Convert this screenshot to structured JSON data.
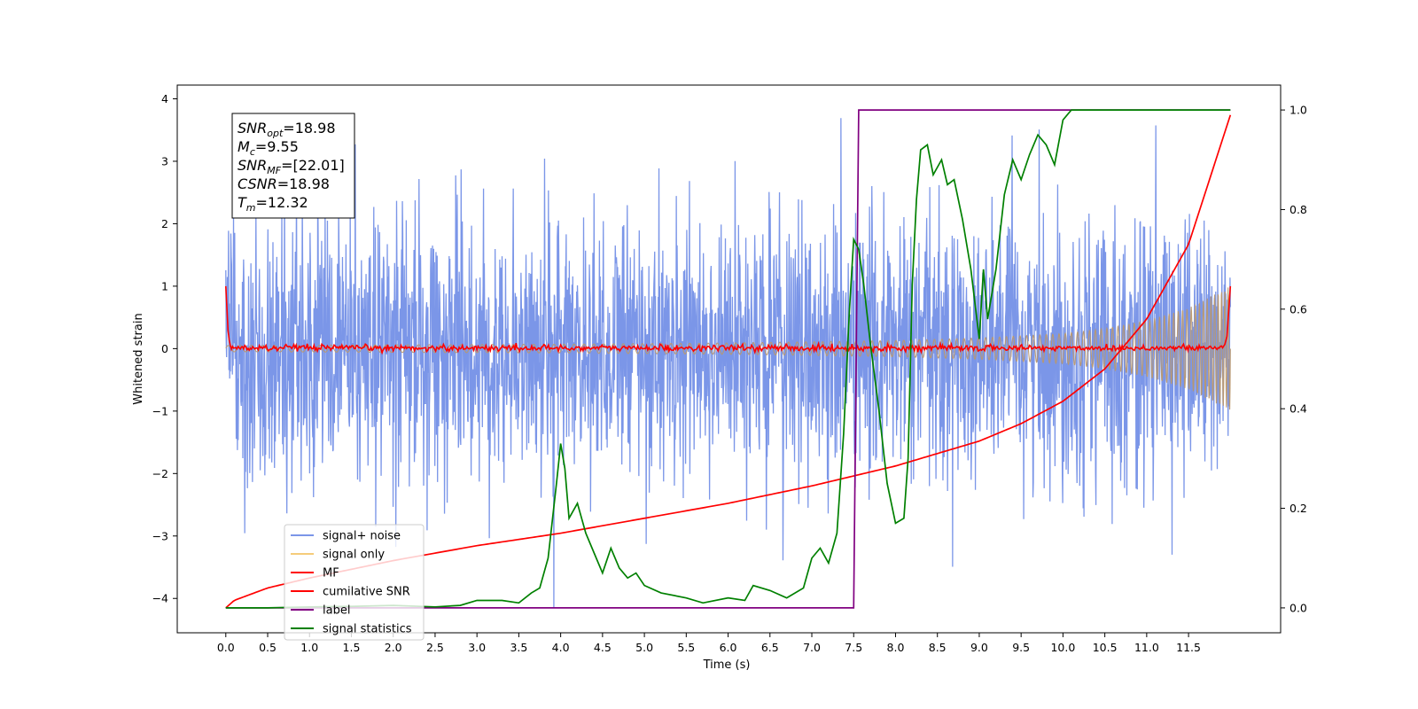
{
  "chart_data": {
    "type": "line",
    "xlabel": "Time (s)",
    "ylabel": "Whitened strain",
    "xlim": [
      -0.58,
      12.6
    ],
    "ylim": [
      -4.55,
      4.22
    ],
    "y2lim": [
      -0.05,
      1.05
    ],
    "grid": false,
    "legend_position": "lower-left",
    "xticks": [
      "0.0",
      "0.5",
      "1.0",
      "1.5",
      "2.0",
      "2.5",
      "3.0",
      "3.5",
      "4.0",
      "4.5",
      "5.0",
      "5.5",
      "6.0",
      "6.5",
      "7.0",
      "7.5",
      "8.0",
      "8.5",
      "9.0",
      "9.5",
      "10.0",
      "10.5",
      "11.0",
      "11.5"
    ],
    "yticks": [
      "4",
      "3",
      "2",
      "1",
      "0",
      "−1",
      "−2",
      "−3",
      "−4"
    ],
    "y2ticks": [
      "1.0",
      "0.8",
      "0.6",
      "0.4",
      "0.2",
      "0.0"
    ],
    "annotation": {
      "lines": [
        {
          "sym": "SNR",
          "sub": "opt",
          "value": "=18.98"
        },
        {
          "sym": "M",
          "sub": "c",
          "value": "=9.55"
        },
        {
          "sym": "SNR",
          "sub": "MF",
          "value": "=[22.01]"
        },
        {
          "sym": "CSNR",
          "sub": "",
          "value": "=18.98"
        },
        {
          "sym": "T",
          "sub": "m",
          "value": "=12.32"
        }
      ]
    },
    "series": [
      {
        "name": "signal+ noise",
        "axis": "left",
        "color": "#7b96e8",
        "noise_std": 1.0,
        "range": [
          -4.15,
          3.85
        ]
      },
      {
        "name": "signal only",
        "axis": "left",
        "color": "#f5cc7a",
        "amplitude_x": [
          0.0,
          2.0,
          4.0,
          6.0,
          8.0,
          9.0,
          10.0,
          10.5,
          11.0,
          11.5,
          12.0
        ],
        "amplitude_y": [
          0.05,
          0.06,
          0.07,
          0.09,
          0.13,
          0.17,
          0.24,
          0.32,
          0.45,
          0.65,
          1.0
        ]
      },
      {
        "name": "MF",
        "axis": "left",
        "color": "#ff0000",
        "x": [
          0.0,
          0.03,
          0.06,
          11.93,
          11.96,
          12.0
        ],
        "y": [
          1.0,
          0.2,
          0.02,
          0.05,
          0.2,
          1.0
        ]
      },
      {
        "name": "cumilative SNR",
        "axis": "right",
        "color": "#ff0000",
        "x": [
          0.0,
          0.1,
          0.5,
          1.0,
          2.0,
          3.0,
          4.0,
          5.0,
          6.0,
          7.0,
          8.0,
          9.0,
          9.5,
          10.0,
          10.5,
          11.0,
          11.5,
          12.0
        ],
        "y": [
          0.0,
          0.015,
          0.04,
          0.06,
          0.095,
          0.125,
          0.15,
          0.18,
          0.21,
          0.245,
          0.285,
          0.335,
          0.37,
          0.415,
          0.48,
          0.58,
          0.73,
          0.99
        ]
      },
      {
        "name": "label",
        "axis": "right",
        "color": "#800080",
        "x": [
          0.0,
          7.5,
          7.56,
          12.0
        ],
        "y": [
          0.0,
          0.0,
          1.0,
          1.0
        ]
      },
      {
        "name": "signal statistics",
        "axis": "right",
        "color": "#008000",
        "x": [
          0.0,
          0.5,
          1.0,
          1.5,
          2.0,
          2.5,
          2.8,
          3.0,
          3.3,
          3.5,
          3.65,
          3.75,
          3.85,
          3.95,
          4.0,
          4.05,
          4.1,
          4.2,
          4.3,
          4.4,
          4.5,
          4.6,
          4.7,
          4.8,
          4.9,
          5.0,
          5.2,
          5.5,
          5.7,
          6.0,
          6.2,
          6.3,
          6.5,
          6.7,
          6.9,
          7.0,
          7.1,
          7.2,
          7.3,
          7.38,
          7.45,
          7.5,
          7.56,
          7.62,
          7.7,
          7.8,
          7.9,
          8.0,
          8.1,
          8.15,
          8.2,
          8.25,
          8.3,
          8.38,
          8.45,
          8.55,
          8.62,
          8.7,
          8.8,
          8.9,
          9.0,
          9.05,
          9.1,
          9.2,
          9.3,
          9.4,
          9.5,
          9.6,
          9.7,
          9.8,
          9.9,
          10.0,
          10.1,
          10.3,
          10.5,
          10.8,
          11.0,
          11.5,
          12.0
        ],
        "y": [
          0.0,
          0.0,
          0.002,
          0.003,
          0.005,
          0.002,
          0.005,
          0.015,
          0.015,
          0.01,
          0.03,
          0.04,
          0.1,
          0.25,
          0.33,
          0.28,
          0.18,
          0.21,
          0.15,
          0.11,
          0.07,
          0.12,
          0.08,
          0.06,
          0.07,
          0.045,
          0.03,
          0.02,
          0.01,
          0.02,
          0.015,
          0.045,
          0.035,
          0.02,
          0.04,
          0.1,
          0.12,
          0.09,
          0.15,
          0.35,
          0.6,
          0.74,
          0.72,
          0.65,
          0.53,
          0.4,
          0.25,
          0.17,
          0.18,
          0.3,
          0.65,
          0.82,
          0.92,
          0.93,
          0.87,
          0.9,
          0.85,
          0.86,
          0.78,
          0.68,
          0.54,
          0.68,
          0.58,
          0.68,
          0.83,
          0.9,
          0.86,
          0.91,
          0.95,
          0.93,
          0.89,
          0.98,
          1.0,
          1.0,
          1.0,
          1.0,
          1.0,
          1.0,
          1.0
        ]
      }
    ]
  }
}
